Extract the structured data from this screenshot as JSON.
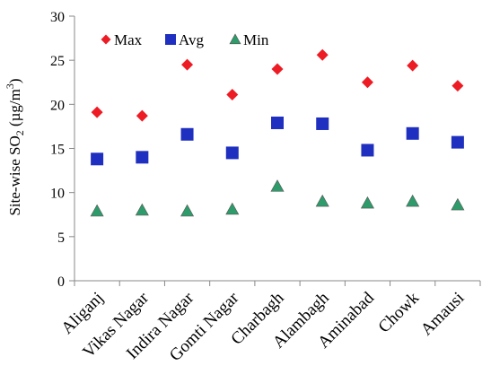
{
  "chart_data": {
    "type": "scatter",
    "categories": [
      "Aliganj",
      "Vikas Nagar",
      "Indira Nagar",
      "Gomti Nagar",
      "Charbagh",
      "Alambagh",
      "Aminabad",
      "Chowk",
      "Amausi"
    ],
    "series": [
      {
        "name": "Max",
        "marker": "diamond",
        "color": "#ed1c24",
        "values": [
          19.1,
          18.7,
          24.5,
          21.1,
          24.0,
          25.6,
          22.5,
          24.4,
          22.1
        ]
      },
      {
        "name": "Avg",
        "marker": "square",
        "color": "#1f2fbf",
        "values": [
          13.8,
          14.0,
          16.6,
          14.5,
          17.9,
          17.8,
          14.8,
          16.7,
          15.7
        ]
      },
      {
        "name": "Min",
        "marker": "triangle",
        "color": "#2e9b6a",
        "values": [
          7.9,
          8.0,
          7.9,
          8.1,
          10.7,
          9.0,
          8.8,
          9.0,
          8.6
        ]
      }
    ],
    "ylabel_parts": {
      "main": "Site-wise SO",
      "sub": "2",
      "unit_open": " (µg/m",
      "sup": "3",
      "unit_close": ")"
    },
    "ylim": [
      0,
      30
    ],
    "yticks": [
      0,
      5,
      10,
      15,
      20,
      25,
      30
    ],
    "legend_position": "top-left",
    "grid": false
  }
}
